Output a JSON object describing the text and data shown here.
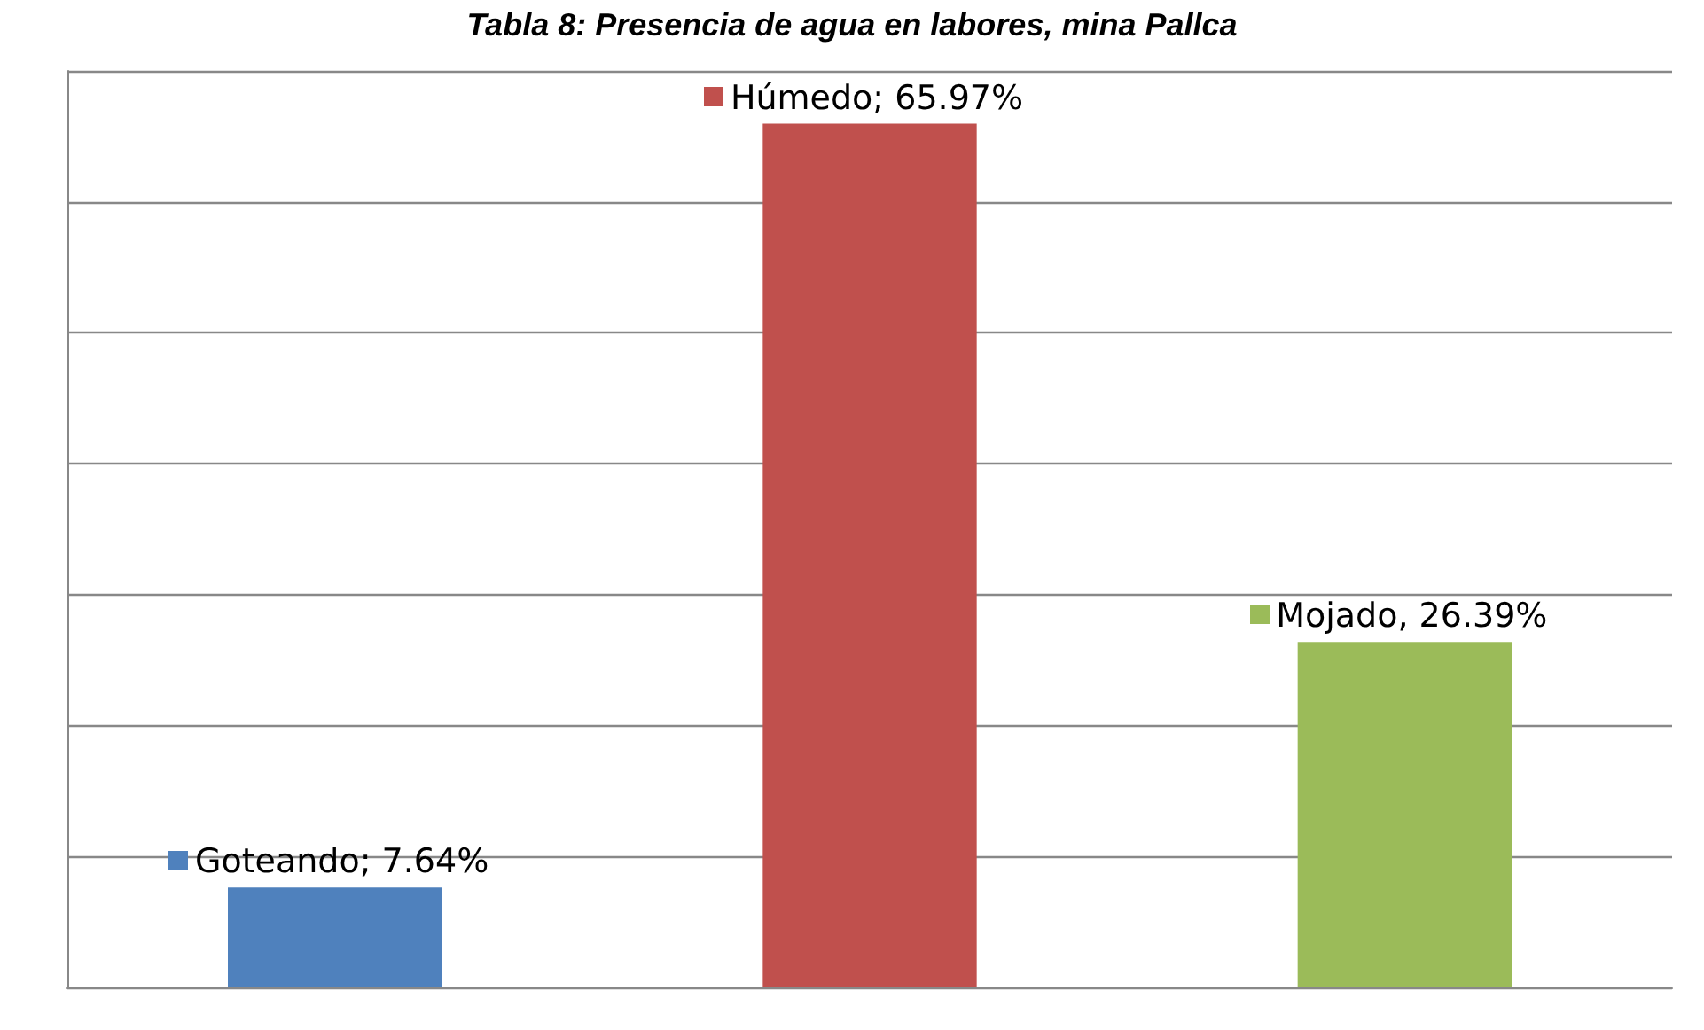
{
  "chart_data": {
    "type": "bar",
    "title": "Tabla 8: Presencia de agua en labores, mina Pallca",
    "categories": [
      null,
      null,
      null
    ],
    "values": [
      7.64,
      65.97,
      26.39
    ],
    "colors": [
      "#4f81bd",
      "#c0504d",
      "#9bbb59"
    ],
    "value_labels": [
      "Goteando; 7.64%",
      "Húmedo; 65.97%",
      "Mojado, 26.39%"
    ],
    "ylim": [
      0,
      70
    ],
    "yticks": [
      0,
      10,
      20,
      30,
      40,
      50,
      60,
      70
    ],
    "grid": "y",
    "tick_labels": false
  }
}
